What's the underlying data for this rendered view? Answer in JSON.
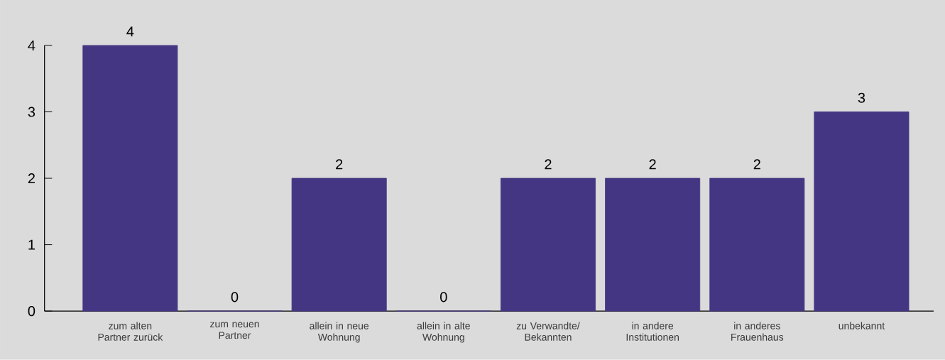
{
  "chart_data": {
    "type": "bar",
    "categories": [
      "zum alten Partner zurück",
      "zum neuen Partner",
      "allein in neue Wohnung",
      "allein in alte Wohnung",
      "zu Verwandte/ Bekannten",
      "in andere Institutionen",
      "in anderes Frauenhaus",
      "unbekannt"
    ],
    "values": [
      4,
      0,
      2,
      0,
      2,
      2,
      2,
      3
    ],
    "color": "#453683",
    "ylim": [
      0,
      4
    ],
    "yticks": [
      0,
      1,
      2,
      3,
      4
    ],
    "data_labels": true,
    "grid": false
  }
}
